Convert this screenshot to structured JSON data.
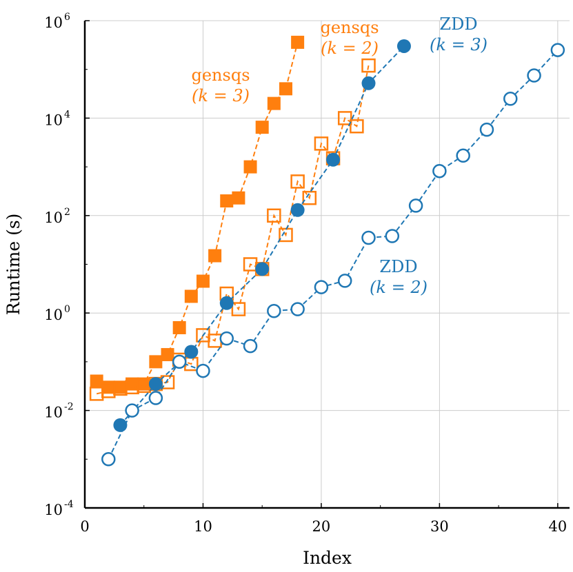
{
  "chart_data": {
    "type": "scatter",
    "title": "",
    "xlabel": "Index",
    "ylabel": "Runtime (s)",
    "xlim": [
      0,
      41
    ],
    "ylim_log10": [
      -4,
      6
    ],
    "yscale": "log",
    "grid": true,
    "x_ticks": [
      "0",
      "10",
      "20",
      "30",
      "40"
    ],
    "y_ticks": [
      {
        "base": "10",
        "exp": "-4"
      },
      {
        "base": "10",
        "exp": "-2"
      },
      {
        "base": "10",
        "exp": "0"
      },
      {
        "base": "10",
        "exp": "2"
      },
      {
        "base": "10",
        "exp": "4"
      },
      {
        "base": "10",
        "exp": "6"
      }
    ],
    "series": [
      {
        "key": "gensqs_k3",
        "color": "#ff7f0e",
        "marker": "square",
        "filled": true,
        "x": [
          1,
          2,
          3,
          4,
          5,
          6,
          7,
          8,
          9,
          10,
          11,
          12,
          13,
          14,
          15,
          16,
          17,
          18
        ],
        "y": [
          0.04,
          0.03,
          0.03,
          0.035,
          0.035,
          0.1,
          0.14,
          0.5,
          2.2,
          4.5,
          15,
          200,
          230,
          1000,
          6500,
          20000,
          40000,
          360000
        ]
      },
      {
        "key": "gensqs_k2",
        "color": "#ff7f0e",
        "marker": "square",
        "filled": false,
        "x": [
          1,
          2,
          3,
          4,
          5,
          6,
          7,
          8,
          9,
          10,
          11,
          12,
          13,
          14,
          15,
          16,
          17,
          18,
          19,
          20,
          21,
          22,
          23,
          24
        ],
        "y": [
          0.022,
          0.025,
          0.028,
          0.03,
          0.032,
          0.035,
          0.038,
          0.11,
          0.09,
          0.35,
          0.27,
          2.5,
          1.2,
          10,
          8,
          100,
          40,
          500,
          230,
          3000,
          1500,
          10000,
          6800,
          120000
        ]
      },
      {
        "key": "zdd_k3",
        "color": "#1f77b4",
        "marker": "circle",
        "filled": true,
        "x": [
          3,
          6,
          9,
          12,
          15,
          18,
          21,
          24,
          27
        ],
        "y": [
          0.005,
          0.035,
          0.16,
          1.6,
          8,
          130,
          1400,
          52000,
          300000
        ]
      },
      {
        "key": "zdd_k2",
        "color": "#1f77b4",
        "marker": "circle",
        "filled": false,
        "x": [
          2,
          4,
          6,
          8,
          10,
          12,
          14,
          16,
          18,
          20,
          22,
          24,
          26,
          28,
          30,
          32,
          34,
          36,
          38,
          40
        ],
        "y": [
          0.001,
          0.01,
          0.018,
          0.1,
          0.065,
          0.3,
          0.21,
          1.1,
          1.2,
          3.4,
          4.6,
          35,
          38,
          160,
          820,
          1700,
          5800,
          25000,
          75000,
          250000
        ]
      }
    ],
    "annotations": [
      {
        "line1": "gensqs",
        "line2": "(k = 3)",
        "color": "#ff7f0e"
      },
      {
        "line1": "gensqs",
        "line2": "(k = 2)",
        "color": "#ff7f0e"
      },
      {
        "line1": "ZDD",
        "line2": "(k = 3)",
        "color": "#1f77b4"
      },
      {
        "line1": "ZDD",
        "line2": "(k = 2)",
        "color": "#1f77b4"
      }
    ]
  }
}
